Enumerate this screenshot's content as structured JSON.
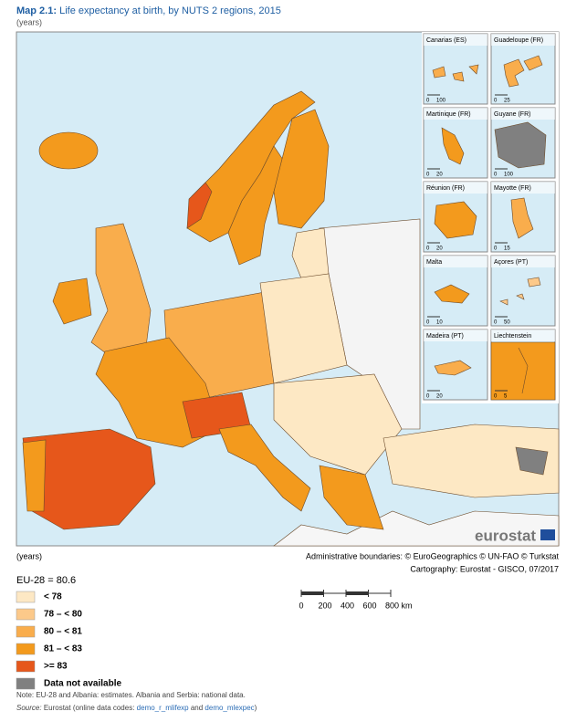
{
  "header": {
    "title_prefix": "Map 2.1:",
    "title": "Life expectancy at birth, by NUTS 2 regions, 2015",
    "subtitle": "(years)"
  },
  "insets": [
    {
      "label": "Canarias (ES)",
      "scale": [
        "0",
        "100"
      ]
    },
    {
      "label": "Guadeloupe (FR)",
      "scale": [
        "0",
        "25"
      ]
    },
    {
      "label": "Martinique (FR)",
      "scale": [
        "0",
        "20"
      ]
    },
    {
      "label": "Guyane (FR)",
      "scale": [
        "0",
        "100"
      ]
    },
    {
      "label": "Réunion (FR)",
      "scale": [
        "0",
        "20"
      ]
    },
    {
      "label": "Mayotte (FR)",
      "scale": [
        "0",
        "15"
      ]
    },
    {
      "label": "Malta",
      "scale": [
        "0",
        "10"
      ]
    },
    {
      "label": "Açores (PT)",
      "scale": [
        "0",
        "50"
      ]
    },
    {
      "label": "Madeira (PT)",
      "scale": [
        "0",
        "20"
      ]
    },
    {
      "label": "Liechtenstein",
      "scale": [
        "0",
        "5"
      ]
    }
  ],
  "logo": "eurostat",
  "legend": {
    "unit": "(years)",
    "eu_average": "EU-28 = 80.6",
    "classes": [
      {
        "label": "< 78",
        "color": "#fde8c4"
      },
      {
        "label": "78 – < 80",
        "color": "#fcc98a"
      },
      {
        "label": "80 – < 81",
        "color": "#f9ad4c"
      },
      {
        "label": "81 – < 83",
        "color": "#f39a1d"
      },
      {
        "label": ">= 83",
        "color": "#e6571b"
      },
      {
        "label": "Data not available",
        "color": "#808080"
      }
    ]
  },
  "credits": [
    "Administrative boundaries: © EuroGeographics © UN-FAO © Turkstat",
    "Cartography: Eurostat - GISCO, 07/2017"
  ],
  "scale_bar": {
    "ticks": [
      "0",
      "200",
      "400",
      "600",
      "800 km"
    ]
  },
  "notes": {
    "note": "Note: EU-28 and Albania: estimates. Albania and Serbia: national data.",
    "source_label": "Source:",
    "source_text": "Eurostat (online data codes:",
    "code_1": "demo_r_mlifexp",
    "and": "and",
    "code_2": "demo_mlexpec",
    "close": ")"
  }
}
